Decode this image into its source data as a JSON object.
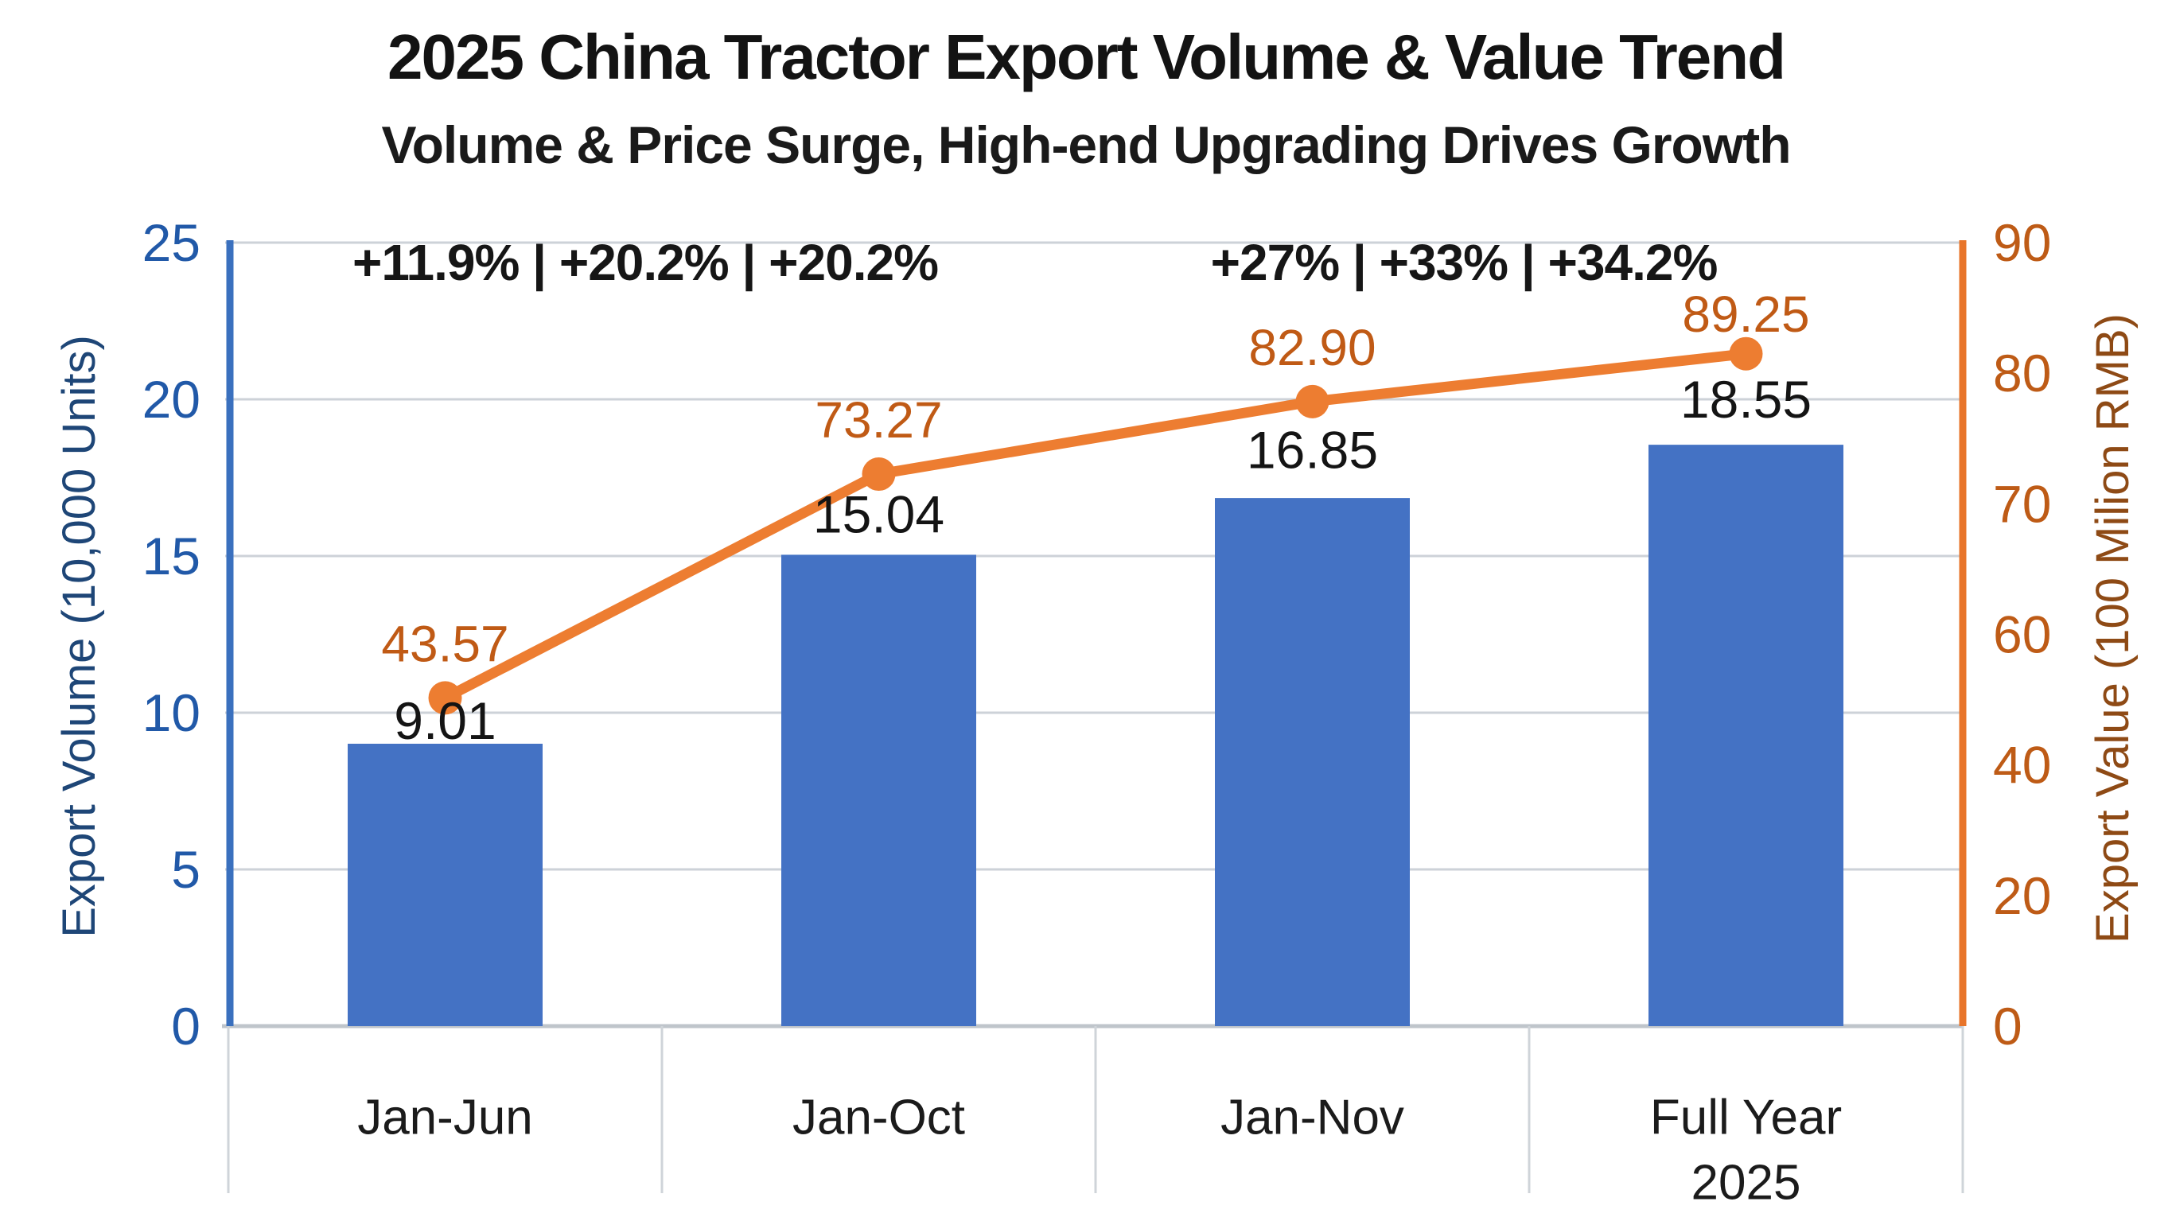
{
  "title": "2025 China Tractor Export Volume & Value Trend",
  "subtitle": "Volume & Price Surge, High-end Upgrading Drives Growth",
  "annotations": {
    "left_group": "+11.9% | +20.2% | +20.2%",
    "right_group": "+27% | +33% | +34.2%"
  },
  "chart_data": {
    "type": "bar+line",
    "categories": [
      [
        "Jan-Jun"
      ],
      [
        "Jan-Oct"
      ],
      [
        "Jan-Nov"
      ],
      [
        "Full Year",
        "2025"
      ]
    ],
    "series": [
      {
        "name": "Export Volume",
        "type": "bar",
        "axis": "left",
        "values": [
          9.01,
          15.04,
          16.85,
          18.55
        ],
        "labels": [
          "9.01",
          "15.04",
          "16.85",
          "18.55"
        ],
        "color": "#4472C4",
        "label_color": "#141414"
      },
      {
        "name": "Export Value",
        "type": "line",
        "axis": "right",
        "values": [
          43.57,
          73.27,
          82.9,
          89.25
        ],
        "labels": [
          "43.57",
          "73.27",
          "82.90",
          "89.25"
        ],
        "color": "#ED7D31",
        "label_color": "#C05A15"
      }
    ],
    "left_axis": {
      "title": "Export Volume (10,000 Units)",
      "ticks": [
        "25",
        "20",
        "15",
        "10",
        "5",
        "0"
      ],
      "range": [
        0,
        25
      ],
      "tick_color": "#2159A8",
      "line_color": "#3A70BE"
    },
    "right_axis": {
      "title": "Export Value (100 Milion RMB)",
      "tick_labels": [
        "90",
        "80",
        "70",
        "60",
        "40",
        "20",
        "0"
      ],
      "range_visual": [
        0,
        104
      ],
      "tick_color": "#BE5B16",
      "line_color": "#E8752A"
    },
    "grid": {
      "show": true,
      "color": "#CDD2D8"
    },
    "x_axis_color": "#BFC5CB",
    "separator_color": "#CFD4D9",
    "category_label_color": "#1b1b1b",
    "legend": {
      "show": false
    }
  }
}
